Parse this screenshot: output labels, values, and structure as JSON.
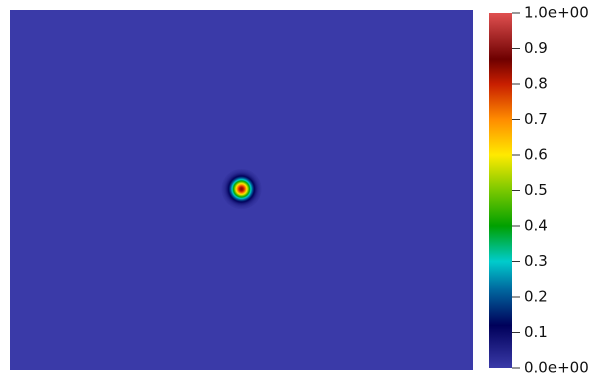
{
  "chart_data": {
    "type": "heatmap",
    "title": "",
    "xlabel": "",
    "ylabel": "",
    "background_value": 0.0,
    "field": {
      "shape": "radial-gaussian",
      "peak_value": 0.85,
      "center_fraction": [
        0.5,
        0.5
      ]
    },
    "colorbar": {
      "min": 0.0,
      "max": 1.0,
      "ticks": [
        {
          "value": 1.0,
          "label": "1.0e+00"
        },
        {
          "value": 0.9,
          "label": "0.9"
        },
        {
          "value": 0.8,
          "label": "0.8"
        },
        {
          "value": 0.7,
          "label": "0.7"
        },
        {
          "value": 0.6,
          "label": "0.6"
        },
        {
          "value": 0.5,
          "label": "0.5"
        },
        {
          "value": 0.4,
          "label": "0.4"
        },
        {
          "value": 0.3,
          "label": "0.3"
        },
        {
          "value": 0.2,
          "label": "0.2"
        },
        {
          "value": 0.1,
          "label": "0.1"
        },
        {
          "value": 0.0,
          "label": "0.0e+00"
        }
      ],
      "stops": [
        {
          "value": 0.0,
          "color": "#3a3aa8"
        },
        {
          "value": 0.12,
          "color": "#00005a"
        },
        {
          "value": 0.22,
          "color": "#00669e"
        },
        {
          "value": 0.3,
          "color": "#00cccc"
        },
        {
          "value": 0.4,
          "color": "#00a000"
        },
        {
          "value": 0.5,
          "color": "#7ac800"
        },
        {
          "value": 0.6,
          "color": "#ffea00"
        },
        {
          "value": 0.7,
          "color": "#ff8c00"
        },
        {
          "value": 0.8,
          "color": "#c81e00"
        },
        {
          "value": 0.87,
          "color": "#6e0000"
        },
        {
          "value": 1.0,
          "color": "#e05050"
        }
      ]
    }
  }
}
